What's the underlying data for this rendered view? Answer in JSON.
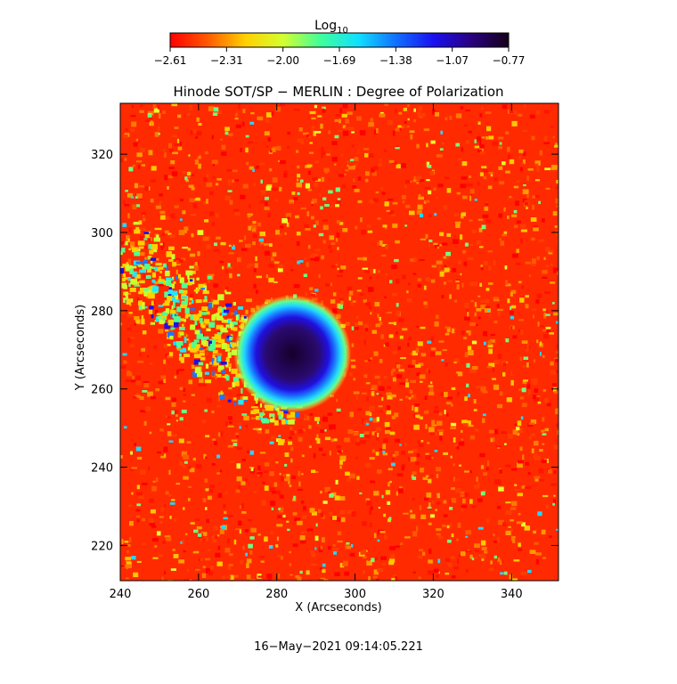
{
  "colorbar": {
    "title_main": "Log",
    "title_sub": "10",
    "ticks": [
      "−2.61",
      "−2.31",
      "−2.00",
      "−1.69",
      "−1.38",
      "−1.07",
      "−0.77"
    ],
    "stops": [
      "#ff0000",
      "#ff5a00",
      "#ffd000",
      "#d4ff30",
      "#40ff9a",
      "#10e0ff",
      "#1070ff",
      "#1a10f0",
      "#2a0080",
      "#150018"
    ]
  },
  "title": "Hinode SOT/SP − MERLIN : Degree of Polarization",
  "xaxis": {
    "label": "X (Arcseconds)",
    "range": [
      240,
      352
    ],
    "ticks": [
      240,
      260,
      280,
      300,
      320,
      340
    ]
  },
  "yaxis": {
    "label": "Y (Arcseconds)",
    "range": [
      211,
      333
    ],
    "ticks": [
      220,
      240,
      260,
      280,
      300,
      320
    ]
  },
  "sunspot": {
    "x": 284,
    "y": 269
  },
  "timestamp": "16−May−2021 09:14:05.221"
}
